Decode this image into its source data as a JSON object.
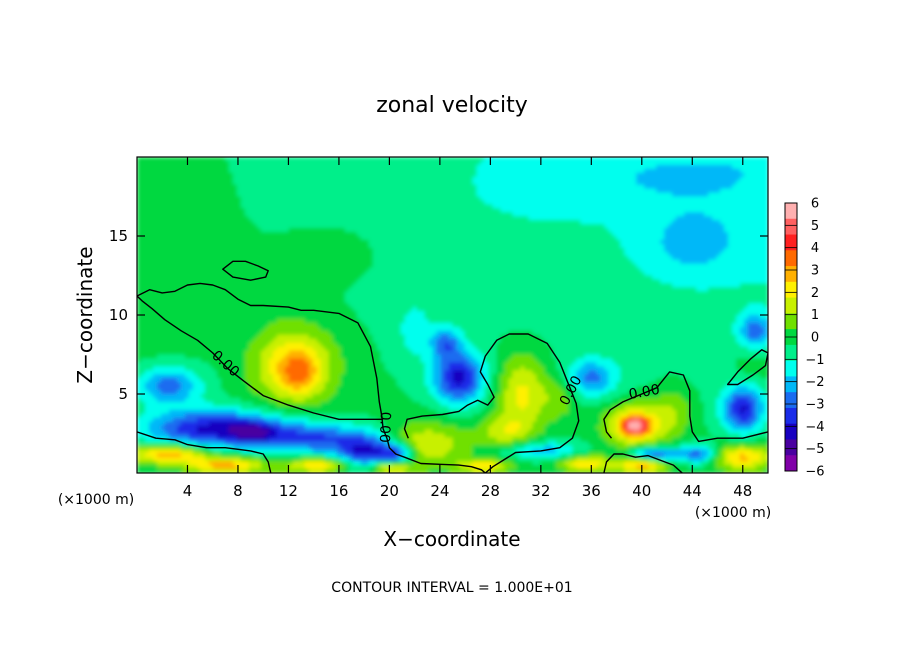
{
  "chart_data": {
    "type": "heatmap",
    "title": "zonal velocity",
    "xlabel": "X−coordinate",
    "ylabel": "Z−coordinate",
    "x_unit": "(×1000 m)",
    "y_unit": "(×1000 m)",
    "xlim": [
      0,
      50
    ],
    "ylim": [
      0,
      20
    ],
    "x_ticks": [
      4,
      8,
      12,
      16,
      20,
      24,
      28,
      32,
      36,
      40,
      44,
      48
    ],
    "y_ticks": [
      5,
      10,
      15
    ],
    "colorbar": {
      "min": -6,
      "max": 6,
      "labels": [
        "6",
        "5",
        "4",
        "3",
        "2",
        "1",
        "0",
        "−1",
        "−2",
        "−3",
        "−4",
        "−5",
        "−6"
      ],
      "colors": [
        "#ffb0b0",
        "#ff6060",
        "#ff2020",
        "#ff6a00",
        "#ffb000",
        "#fff000",
        "#c8f000",
        "#70e000",
        "#00d840",
        "#00ef8a",
        "#00ffee",
        "#00b8f8",
        "#1a6cf0",
        "#1a2ce8",
        "#1800c0",
        "#4a00a0",
        "#8000a8"
      ]
    },
    "contour_label": "0.00",
    "footer": "CONTOUR INTERVAL = 1.000E+01",
    "features": [
      {
        "x": 12.5,
        "z": 6.8,
        "rx": 3.2,
        "rz": 2.4,
        "v": 3.0
      },
      {
        "x": 12.8,
        "z": 6.3,
        "rx": 1.4,
        "rz": 1.2,
        "v": 1.5
      },
      {
        "x": 10.0,
        "z": 11.0,
        "rx": 3.0,
        "rz": 1.0,
        "v": 0.6
      },
      {
        "x": 23.0,
        "z": 1.8,
        "rx": 3.2,
        "rz": 1.4,
        "v": 2.0
      },
      {
        "x": 30.5,
        "z": 5.0,
        "rx": 2.0,
        "rz": 2.6,
        "v": 2.4
      },
      {
        "x": 29.0,
        "z": 2.6,
        "rx": 2.0,
        "rz": 1.0,
        "v": 1.5
      },
      {
        "x": 33.5,
        "z": 4.8,
        "rx": 1.4,
        "rz": 1.4,
        "v": 1.2
      },
      {
        "x": 39.5,
        "z": 3.0,
        "rx": 2.4,
        "rz": 1.4,
        "v": 3.2
      },
      {
        "x": 39.5,
        "z": 3.0,
        "rx": 1.0,
        "rz": 0.55,
        "v": 3.8
      },
      {
        "x": 42.5,
        "z": 4.0,
        "rx": 1.6,
        "rz": 1.6,
        "v": 1.2
      },
      {
        "x": 49.0,
        "z": 6.8,
        "rx": 1.8,
        "rz": 0.9,
        "v": 0.8
      },
      {
        "x": 2.5,
        "z": 1.2,
        "rx": 3.0,
        "rz": 0.6,
        "v": 3.4
      },
      {
        "x": 7.0,
        "z": 0.5,
        "rx": 3.0,
        "rz": 0.5,
        "v": 3.2
      },
      {
        "x": 14.5,
        "z": 0.5,
        "rx": 2.6,
        "rz": 0.45,
        "v": 3.0
      },
      {
        "x": 20.0,
        "z": 0.35,
        "rx": 1.6,
        "rz": 0.4,
        "v": 3.2
      },
      {
        "x": 27.5,
        "z": 0.45,
        "rx": 2.0,
        "rz": 0.4,
        "v": 2.6
      },
      {
        "x": 35.5,
        "z": 0.6,
        "rx": 2.0,
        "rz": 0.5,
        "v": 2.8
      },
      {
        "x": 40.0,
        "z": 0.5,
        "rx": 2.0,
        "rz": 0.5,
        "v": 3.2
      },
      {
        "x": 48.0,
        "z": 1.0,
        "rx": 2.2,
        "rz": 0.8,
        "v": 3.0
      },
      {
        "x": 6.0,
        "z": 2.8,
        "rx": 5.5,
        "rz": 1.2,
        "v": -4.2
      },
      {
        "x": 9.5,
        "z": 2.5,
        "rx": 2.2,
        "rz": 0.8,
        "v": -2.4
      },
      {
        "x": 2.5,
        "z": 5.5,
        "rx": 2.6,
        "rz": 1.2,
        "v": -2.8
      },
      {
        "x": 14.0,
        "z": 2.2,
        "rx": 3.0,
        "rz": 1.0,
        "v": -3.0
      },
      {
        "x": 18.0,
        "z": 1.4,
        "rx": 2.2,
        "rz": 1.2,
        "v": -4.0
      },
      {
        "x": 25.5,
        "z": 6.0,
        "rx": 2.0,
        "rz": 1.6,
        "v": -4.0
      },
      {
        "x": 24.5,
        "z": 8.2,
        "rx": 1.2,
        "rz": 1.0,
        "v": -2.4
      },
      {
        "x": 22.0,
        "z": 9.0,
        "rx": 1.6,
        "rz": 2.0,
        "v": -1.0
      },
      {
        "x": 20.5,
        "z": 1.2,
        "rx": 1.4,
        "rz": 0.7,
        "v": -3.4
      },
      {
        "x": 36.0,
        "z": 6.0,
        "rx": 2.0,
        "rz": 1.2,
        "v": -2.4
      },
      {
        "x": 32.0,
        "z": 1.4,
        "rx": 3.0,
        "rz": 0.6,
        "v": -2.2
      },
      {
        "x": 41.0,
        "z": 1.2,
        "rx": 2.0,
        "rz": 0.5,
        "v": -3.4
      },
      {
        "x": 44.5,
        "z": 1.2,
        "rx": 1.4,
        "rz": 0.6,
        "v": -2.8
      },
      {
        "x": 48.0,
        "z": 4.0,
        "rx": 1.6,
        "rz": 1.4,
        "v": -3.8
      },
      {
        "x": 49.0,
        "z": 9.0,
        "rx": 1.2,
        "rz": 1.0,
        "v": -2.4
      },
      {
        "x": 44.0,
        "z": 14.5,
        "rx": 3.5,
        "rz": 2.0,
        "v": -1.2
      },
      {
        "x": 42.0,
        "z": 18.5,
        "rx": 7.0,
        "rz": 1.6,
        "v": -0.6
      },
      {
        "x": 31.0,
        "z": 18.0,
        "rx": 5.0,
        "rz": 2.0,
        "v": -0.4
      },
      {
        "x": 16.0,
        "z": 14.0,
        "rx": 4.0,
        "rz": 2.0,
        "v": 0.3
      }
    ],
    "contours": [
      {
        "closed": false,
        "points": [
          [
            0,
            11.2
          ],
          [
            1,
            11.6
          ],
          [
            2,
            11.4
          ],
          [
            3,
            11.5
          ],
          [
            4,
            11.9
          ],
          [
            5,
            12.0
          ],
          [
            6,
            11.9
          ],
          [
            7,
            11.6
          ],
          [
            8,
            11.0
          ],
          [
            9,
            10.6
          ],
          [
            10,
            10.6
          ],
          [
            12,
            10.5
          ],
          [
            13,
            10.3
          ],
          [
            14,
            10.3
          ],
          [
            16,
            10.1
          ],
          [
            17.5,
            9.5
          ],
          [
            18.5,
            8.0
          ],
          [
            19,
            6.0
          ],
          [
            19.2,
            4.5
          ],
          [
            19.4,
            3.6
          ],
          [
            19.5,
            2.8
          ],
          [
            19.8,
            2.2
          ],
          [
            20,
            1.6
          ],
          [
            20.5,
            1.2
          ],
          [
            21.2,
            1.0
          ],
          [
            22.5,
            0.6
          ],
          [
            24,
            0.55
          ],
          [
            25.5,
            0.5
          ],
          [
            26.5,
            0.4
          ],
          [
            27.3,
            0.2
          ],
          [
            27.6,
            0.0
          ]
        ]
      },
      {
        "closed": false,
        "points": [
          [
            19.5,
            3.4
          ],
          [
            18,
            3.4
          ],
          [
            16,
            3.4
          ],
          [
            14,
            3.8
          ],
          [
            12,
            4.3
          ],
          [
            10,
            4.9
          ],
          [
            8.5,
            5.8
          ],
          [
            7.2,
            6.6
          ],
          [
            6,
            7.6
          ],
          [
            4.8,
            8.4
          ],
          [
            3.5,
            9.0
          ],
          [
            2.2,
            9.7
          ],
          [
            1.2,
            10.4
          ],
          [
            0.4,
            10.9
          ],
          [
            0,
            11.2
          ]
        ]
      },
      {
        "closed": false,
        "points": [
          [
            21.5,
            2.2
          ],
          [
            21.2,
            2.8
          ],
          [
            21.4,
            3.4
          ],
          [
            22.6,
            3.6
          ],
          [
            24.2,
            3.7
          ],
          [
            25.5,
            3.9
          ],
          [
            26.2,
            4.3
          ],
          [
            27,
            4.6
          ],
          [
            27.8,
            4.3
          ],
          [
            28.3,
            4.8
          ],
          [
            27.8,
            5.6
          ],
          [
            27.2,
            6.4
          ],
          [
            27.6,
            7.4
          ],
          [
            28.5,
            8.4
          ],
          [
            29.5,
            8.8
          ],
          [
            31,
            8.8
          ],
          [
            32.5,
            8.2
          ],
          [
            33.5,
            7.0
          ],
          [
            34.2,
            5.6
          ],
          [
            34.8,
            4.4
          ],
          [
            35,
            3.3
          ],
          [
            34.5,
            2.2
          ],
          [
            33.5,
            1.6
          ],
          [
            32,
            1.4
          ],
          [
            30,
            1.3
          ],
          [
            29,
            0.8
          ],
          [
            28.2,
            0.4
          ],
          [
            27.6,
            0.0
          ]
        ]
      },
      {
        "closed": false,
        "points": [
          [
            0,
            2.6
          ],
          [
            1.5,
            2.2
          ],
          [
            3,
            2.1
          ],
          [
            4,
            1.8
          ],
          [
            5.5,
            1.6
          ],
          [
            7,
            1.6
          ],
          [
            8,
            1.5
          ],
          [
            9,
            1.4
          ],
          [
            10,
            1.2
          ],
          [
            10.4,
            0.7
          ],
          [
            10.6,
            0.0
          ]
        ]
      },
      {
        "closed": false,
        "points": [
          [
            37,
            0.0
          ],
          [
            37.2,
            0.7
          ],
          [
            37.8,
            1.2
          ],
          [
            38.5,
            1.2
          ],
          [
            39.5,
            1.0
          ],
          [
            40.5,
            1.1
          ],
          [
            41.5,
            0.8
          ],
          [
            42.5,
            0.5
          ],
          [
            43.2,
            0.0
          ]
        ]
      },
      {
        "closed": false,
        "points": [
          [
            50,
            2.6
          ],
          [
            48,
            2.2
          ],
          [
            46,
            2.2
          ],
          [
            44.5,
            2.0
          ],
          [
            44,
            2.6
          ],
          [
            43.8,
            3.6
          ],
          [
            43.8,
            5.2
          ],
          [
            43.3,
            6.2
          ],
          [
            42.2,
            6.4
          ],
          [
            41.2,
            5.4
          ],
          [
            40,
            5.0
          ],
          [
            38.5,
            4.5
          ],
          [
            37.5,
            4.0
          ],
          [
            37,
            3.4
          ],
          [
            37.2,
            2.6
          ],
          [
            37.6,
            2.2
          ]
        ]
      },
      {
        "closed": true,
        "points": [
          [
            6.8,
            12.9
          ],
          [
            7.6,
            13.4
          ],
          [
            8.6,
            13.4
          ],
          [
            9.6,
            13.1
          ],
          [
            10.4,
            12.8
          ],
          [
            10.2,
            12.4
          ],
          [
            9.0,
            12.2
          ],
          [
            7.6,
            12.4
          ]
        ]
      },
      {
        "closed": true,
        "points": [
          [
            46.8,
            5.6
          ],
          [
            47.6,
            6.4
          ],
          [
            48.6,
            7.2
          ],
          [
            49.5,
            7.8
          ],
          [
            50,
            7.6
          ],
          [
            49.8,
            6.8
          ],
          [
            48.8,
            6.2
          ],
          [
            47.6,
            5.6
          ]
        ]
      }
    ],
    "contour_labels": [
      {
        "x": 7.0,
        "z": 6.9,
        "angle": 42
      },
      {
        "x": 19.6,
        "z": 2.9,
        "angle": 92
      },
      {
        "x": 34.4,
        "z": 5.2,
        "angle": -62
      },
      {
        "x": 40.2,
        "z": 5.1,
        "angle": -10
      }
    ]
  }
}
